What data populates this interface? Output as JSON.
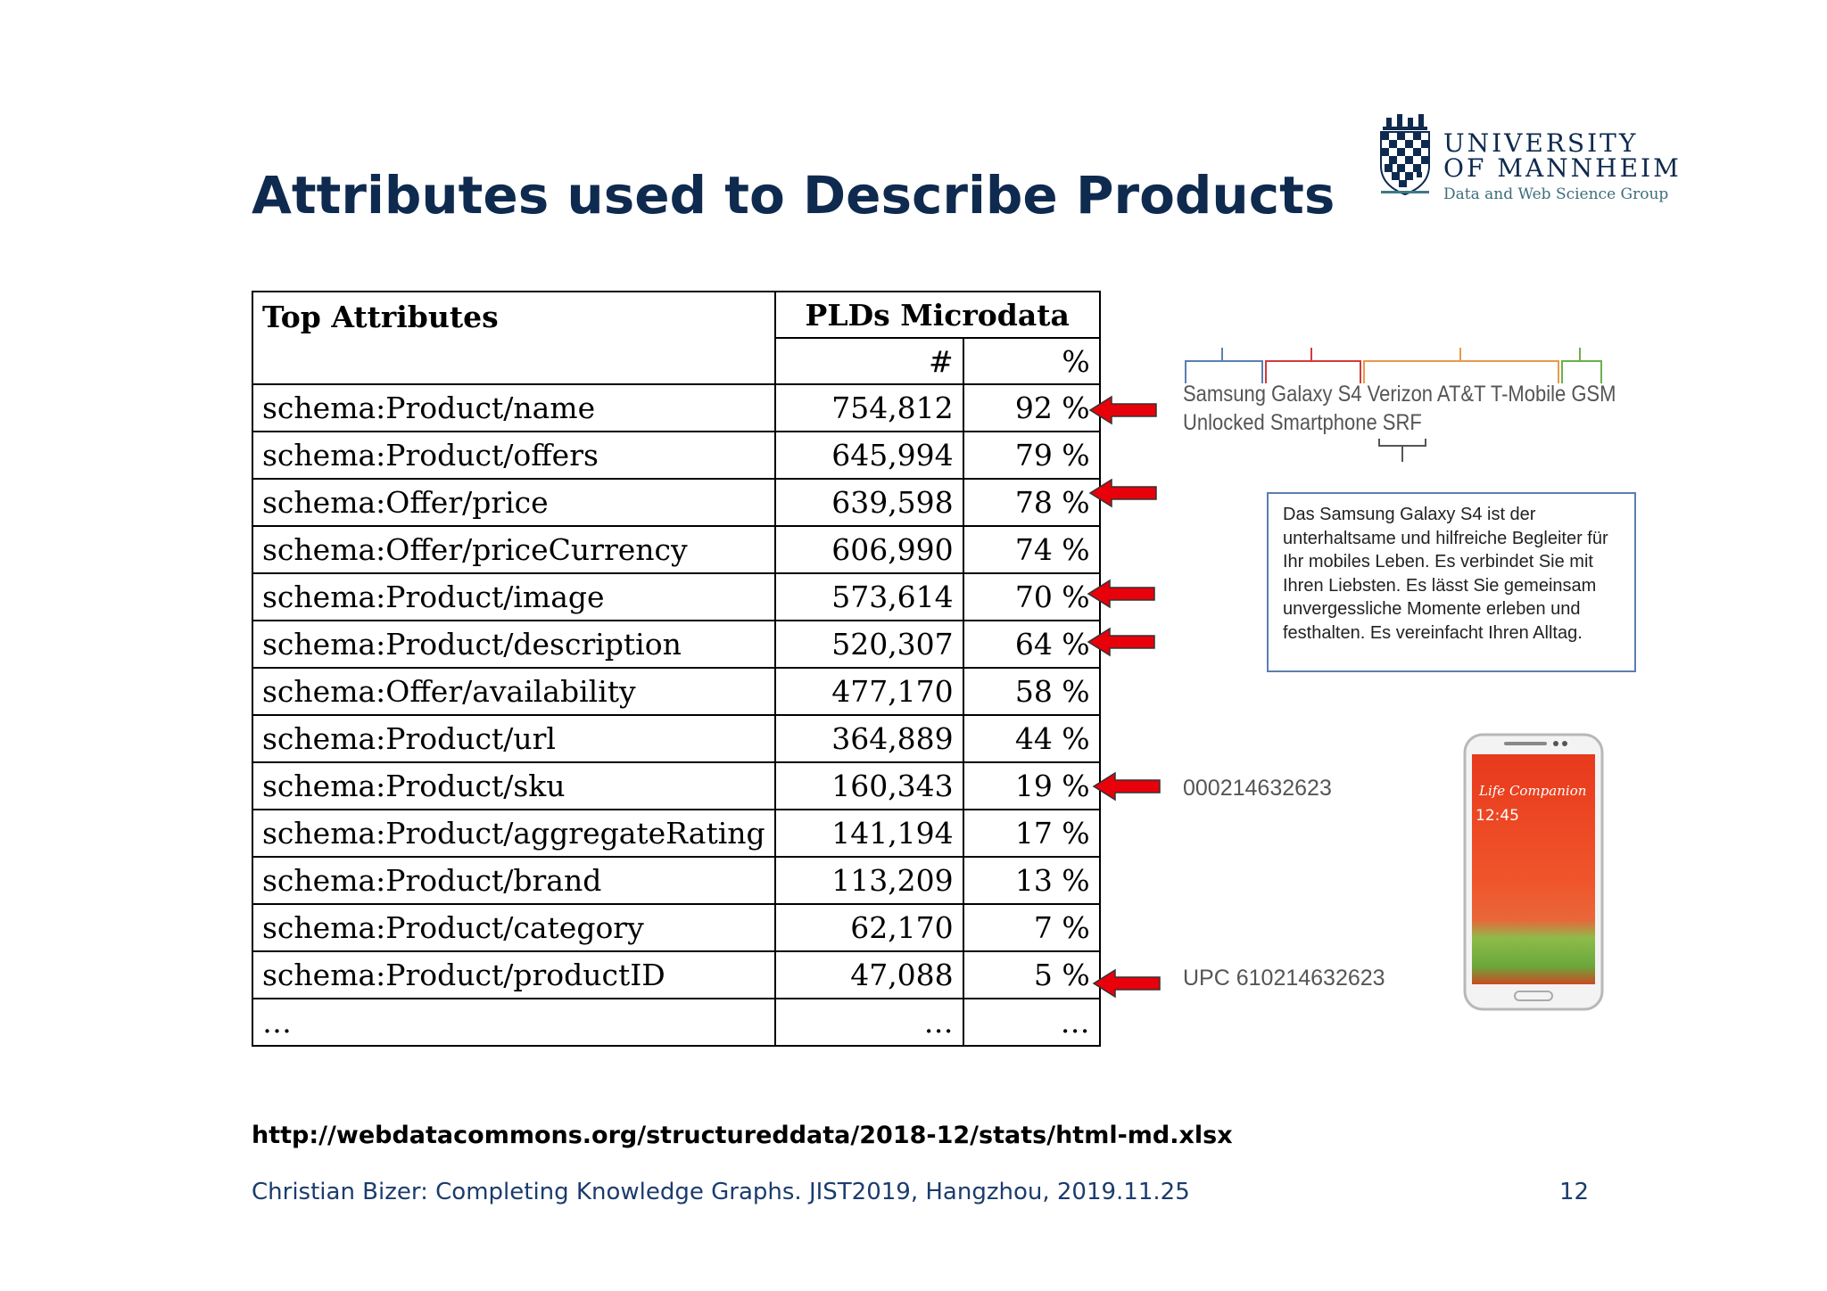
{
  "slide": {
    "title": "Attributes used to Describe Products",
    "source_url": "http://webdatacommons.org/structureddata/2018-12/stats/html-md.xlsx",
    "footer": "Christian Bizer: Completing Knowledge Graphs. JIST2019, Hangzhou, 2019.11.25",
    "page_number": "12"
  },
  "logo": {
    "line1": "UNIVERSITY",
    "line2": "OF MANNHEIM",
    "group": "Data and Web Science Group",
    "icon": "mannheim-crest-icon",
    "color": "#0f2a4f"
  },
  "table": {
    "header_attr": "Top Attributes",
    "header_group": "PLDs Microdata",
    "header_count": "#",
    "header_pct": "%",
    "rows": [
      {
        "attr": "schema:Product/name",
        "count": "754,812",
        "pct": "92 %"
      },
      {
        "attr": "schema:Product/offers",
        "count": "645,994",
        "pct": "79 %"
      },
      {
        "attr": "schema:Offer/price",
        "count": "639,598",
        "pct": "78 %"
      },
      {
        "attr": "schema:Offer/priceCurrency",
        "count": "606,990",
        "pct": "74 %"
      },
      {
        "attr": "schema:Product/image",
        "count": "573,614",
        "pct": "70 %"
      },
      {
        "attr": "schema:Product/description",
        "count": "520,307",
        "pct": "64 %"
      },
      {
        "attr": "schema:Offer/availability",
        "count": "477,170",
        "pct": "58 %"
      },
      {
        "attr": "schema:Product/url",
        "count": "364,889",
        "pct": "44 %"
      },
      {
        "attr": "schema:Product/sku",
        "count": "160,343",
        "pct": "19 %"
      },
      {
        "attr": "schema:Product/aggregateRating",
        "count": "141,194",
        "pct": "17 %"
      },
      {
        "attr": "schema:Product/brand",
        "count": "113,209",
        "pct": "13 %"
      },
      {
        "attr": "schema:Product/category",
        "count": "62,170",
        "pct": "7 %"
      },
      {
        "attr": "schema:Product/productID",
        "count": "47,088",
        "pct": "5 %"
      },
      {
        "attr": "…",
        "count": "…",
        "pct": "…"
      }
    ]
  },
  "annotations": {
    "name_line1": "Samsung Galaxy S4 Verizon AT&T T-Mobile GSM",
    "name_line2": "Unlocked Smartphone SRF",
    "description": "Das Samsung Galaxy S4 ist der unterhaltsame und hilfreiche Begleiter für Ihr mobiles Leben. Es verbindet Sie mit Ihren Liebsten. Es lässt Sie gemeinsam unvergessliche Momente erleben und festhalten. Es vereinfacht Ihren Alltag.",
    "sku": "000214632623",
    "product_id": "UPC 610214632623",
    "arrow_color": "#e8000b",
    "arrow_icon": "left-arrow-icon"
  },
  "phone": {
    "screen_title": "Life Companion",
    "screen_time": "12:45",
    "icon": "smartphone-image"
  }
}
